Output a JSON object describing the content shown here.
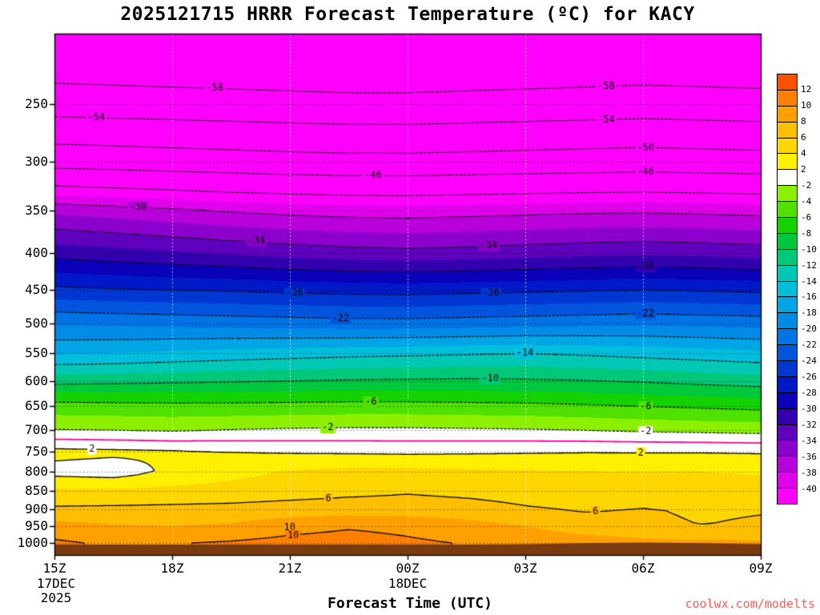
{
  "chart_data": {
    "type": "heatmap",
    "title": "2025121715 HRRR Forecast Temperature (ºC) for KACY",
    "x_axis": {
      "title": "Forecast Time (UTC)",
      "tick_labels": [
        "15Z",
        "18Z",
        "21Z",
        "00Z",
        "03Z",
        "06Z",
        "09Z"
      ],
      "tick_hours": [
        0,
        3,
        6,
        9,
        12,
        15,
        18
      ],
      "total_hours": 18,
      "date_annotations": {
        "line1": "17DEC",
        "line2": "2025",
        "mid": "18DEC"
      }
    },
    "y_axis": {
      "unit": "hPa",
      "scale": "log",
      "top_hpa": 200,
      "bottom_hpa": 1040,
      "tick_labels": [
        "250",
        "300",
        "350",
        "400",
        "450",
        "500",
        "550",
        "600",
        "650",
        "700",
        "750",
        "800",
        "850",
        "900",
        "950",
        "1000"
      ]
    },
    "grid": {
      "time_hours": [
        0,
        1.5,
        3,
        4.5,
        6,
        7.5,
        9,
        10.5,
        12,
        13.5,
        15,
        16.5,
        18
      ],
      "pressure_levels_hpa": [
        200,
        225,
        250,
        300,
        350,
        400,
        450,
        500,
        550,
        600,
        625,
        650,
        700,
        750,
        800,
        850,
        900,
        950,
        1000,
        1040
      ],
      "temperature_c": [
        [
          -61.0,
          -61.2,
          -61.4,
          -61.6,
          -61.8,
          -62.0,
          -62.0,
          -61.8,
          -61.6,
          -61.4,
          -61.2,
          -61.3,
          -61.5
        ],
        [
          -59.3,
          -59.5,
          -59.7,
          -59.9,
          -60.1,
          -60.3,
          -60.3,
          -60.1,
          -59.9,
          -59.7,
          -59.5,
          -59.6,
          -59.8
        ],
        [
          -55.8,
          -56.0,
          -56.2,
          -56.4,
          -56.6,
          -56.8,
          -56.8,
          -56.6,
          -56.4,
          -56.2,
          -56.0,
          -56.2,
          -56.4
        ],
        [
          -47.4,
          -47.7,
          -48.0,
          -48.3,
          -48.6,
          -48.8,
          -48.8,
          -48.6,
          -48.4,
          -48.2,
          -48.0,
          -48.2,
          -48.4
        ],
        [
          -36.5,
          -37.0,
          -37.6,
          -38.2,
          -38.6,
          -38.9,
          -39.0,
          -38.8,
          -38.6,
          -38.4,
          -38.3,
          -38.5,
          -38.7
        ],
        [
          -30.8,
          -31.3,
          -31.8,
          -32.3,
          -32.8,
          -33.2,
          -33.4,
          -33.2,
          -32.9,
          -32.6,
          -32.4,
          -32.6,
          -32.9
        ],
        [
          -25.5,
          -25.8,
          -26.0,
          -26.2,
          -26.5,
          -26.7,
          -26.8,
          -26.6,
          -26.4,
          -26.2,
          -26.0,
          -26.2,
          -26.4
        ],
        [
          -20.2,
          -20.4,
          -20.6,
          -20.8,
          -21.0,
          -21.2,
          -21.2,
          -21.0,
          -20.8,
          -20.6,
          -20.4,
          -20.6,
          -20.8
        ],
        [
          -16.2,
          -16.0,
          -15.6,
          -15.2,
          -14.9,
          -14.6,
          -14.4,
          -14.2,
          -14.0,
          -14.3,
          -14.7,
          -15.1,
          -15.5
        ],
        [
          -10.8,
          -10.6,
          -10.4,
          -10.2,
          -10.0,
          -9.8,
          -9.7,
          -9.6,
          -9.7,
          -9.9,
          -10.2,
          -10.6,
          -11.0
        ],
        [
          -7.6,
          -7.7,
          -7.7,
          -7.6,
          -7.5,
          -7.4,
          -7.4,
          -7.5,
          -7.6,
          -7.8,
          -8.1,
          -8.4,
          -8.7
        ],
        [
          -5.2,
          -5.3,
          -5.4,
          -5.4,
          -5.3,
          -5.2,
          -5.2,
          -5.3,
          -5.4,
          -5.7,
          -6.0,
          -6.3,
          -6.6
        ],
        [
          -2.0,
          -2.1,
          -2.3,
          -2.0,
          -1.8,
          -1.7,
          -1.7,
          -1.8,
          -1.9,
          -2.1,
          -2.4,
          -2.6,
          -2.8
        ],
        [
          2.6,
          2.4,
          2.2,
          2.0,
          1.8,
          1.7,
          1.6,
          1.7,
          1.8,
          1.9,
          1.9,
          1.9,
          1.8
        ],
        [
          1.3,
          1.0,
          2.4,
          3.4,
          4.2,
          4.6,
          4.6,
          4.4,
          4.2,
          4.1,
          4.0,
          4.0,
          3.9
        ],
        [
          4.5,
          4.4,
          4.6,
          4.8,
          5.2,
          5.5,
          5.8,
          5.5,
          5.2,
          5.0,
          4.8,
          4.6,
          4.5
        ],
        [
          6.3,
          6.4,
          6.5,
          6.6,
          6.8,
          7.0,
          7.0,
          6.8,
          6.2,
          5.8,
          6.1,
          5.8,
          5.9
        ],
        [
          8.8,
          8.2,
          8.0,
          8.3,
          9.3,
          9.8,
          9.5,
          8.8,
          8.0,
          7.0,
          6.3,
          6.0,
          6.2
        ],
        [
          10.3,
          9.7,
          9.9,
          10.2,
          10.6,
          10.8,
          10.3,
          9.9,
          9.6,
          9.0,
          8.6,
          8.4,
          8.3
        ],
        [
          10.3,
          9.7,
          9.9,
          10.2,
          10.6,
          10.8,
          10.3,
          9.9,
          9.6,
          9.0,
          8.6,
          8.4,
          8.3
        ]
      ]
    },
    "surface_pressure_hpa": [
      1006,
      1006,
      1006,
      1006,
      1006,
      1006,
      1006,
      1006,
      1005,
      1002,
      1000,
      1002,
      1005
    ],
    "contours": {
      "dashed_levels": [
        -58,
        -54,
        -50,
        -46,
        -42,
        -38,
        -34,
        -30,
        -26,
        -22,
        -18,
        -14,
        -10,
        -6,
        -2
      ],
      "solid_levels": [
        2,
        6,
        10
      ],
      "zero_level": 0,
      "zero_color": "#FF0090",
      "line_color": "#000000",
      "labels": [
        {
          "text": "-58",
          "fx": 0.227,
          "fy": 0.105
        },
        {
          "text": "-54",
          "fx": 0.059,
          "fy": 0.161
        },
        {
          "text": "-58",
          "fx": 0.781,
          "fy": 0.101
        },
        {
          "text": "-54",
          "fx": 0.781,
          "fy": 0.165
        },
        {
          "text": "-50",
          "fx": 0.837,
          "fy": 0.219
        },
        {
          "text": "-46",
          "fx": 0.451,
          "fy": 0.272
        },
        {
          "text": "-46",
          "fx": 0.837,
          "fy": 0.265
        },
        {
          "text": "-38",
          "fx": 0.118,
          "fy": 0.333
        },
        {
          "text": "-34",
          "fx": 0.286,
          "fy": 0.397
        },
        {
          "text": "-34",
          "fx": 0.615,
          "fy": 0.407
        },
        {
          "text": "-30",
          "fx": 0.837,
          "fy": 0.447
        },
        {
          "text": "-26",
          "fx": 0.34,
          "fy": 0.498
        },
        {
          "text": "-26",
          "fx": 0.618,
          "fy": 0.498
        },
        {
          "text": "-22",
          "fx": 0.405,
          "fy": 0.546
        },
        {
          "text": "-22",
          "fx": 0.837,
          "fy": 0.537
        },
        {
          "text": "-14",
          "fx": 0.666,
          "fy": 0.613
        },
        {
          "text": "-10",
          "fx": 0.617,
          "fy": 0.662
        },
        {
          "text": "-6",
          "fx": 0.448,
          "fy": 0.707
        },
        {
          "text": "-6",
          "fx": 0.837,
          "fy": 0.716
        },
        {
          "text": "-2",
          "fx": 0.387,
          "fy": 0.756
        },
        {
          "text": "-2",
          "fx": 0.837,
          "fy": 0.764
        },
        {
          "text": "2",
          "fx": 0.053,
          "fy": 0.797
        },
        {
          "text": "2",
          "fx": 0.83,
          "fy": 0.804
        },
        {
          "text": "6",
          "fx": 0.388,
          "fy": 0.892
        },
        {
          "text": "6",
          "fx": 0.766,
          "fy": 0.917
        },
        {
          "text": "10",
          "fx": 0.333,
          "fy": 0.948
        },
        {
          "text": "10",
          "fx": 0.338,
          "fy": 0.963
        }
      ]
    },
    "colorbar": {
      "boundaries": [
        -40,
        -38,
        -36,
        -34,
        -32,
        -30,
        -28,
        -26,
        -24,
        -22,
        -20,
        -18,
        -16,
        -14,
        -12,
        -10,
        -8,
        -6,
        -4,
        -2,
        2,
        4,
        6,
        8,
        10,
        12
      ],
      "palette_cold_to_warm": [
        "#FF00FF",
        "#E100EB",
        "#B900DC",
        "#8C00CD",
        "#5F00BE",
        "#3200AF",
        "#0A00B9",
        "#0019C8",
        "#0037D2",
        "#0055DC",
        "#0073E6",
        "#008CE6",
        "#00A5E6",
        "#00BEDC",
        "#00C8B4",
        "#00C878",
        "#00C83C",
        "#14D200",
        "#50E100",
        "#8CF000",
        "#FFFFFF",
        "#FFF000",
        "#FFD700",
        "#FFBF00",
        "#FF9F00",
        "#FF7F00",
        "#FF4F00"
      ],
      "labels_top_to_bottom": [
        "12",
        "10",
        "8",
        "6",
        "4",
        "2",
        "-2",
        "-4",
        "-6",
        "-8",
        "-10",
        "-12",
        "-14",
        "-16",
        "-18",
        "-20",
        "-22",
        "-24",
        "-26",
        "-28",
        "-30",
        "-32",
        "-34",
        "-36",
        "-38",
        "-40"
      ]
    },
    "terrain_color": "#7A3B0E",
    "gridlines": {
      "horizontal_color": "rgba(0,0,0,0.55)",
      "vertical_color": "rgba(255,255,255,0.85)",
      "vertical_hours": [
        3,
        6,
        9,
        12,
        15
      ]
    },
    "watermark": {
      "text": "coolwx.com/modelts",
      "color": "#FF5C5C"
    }
  }
}
